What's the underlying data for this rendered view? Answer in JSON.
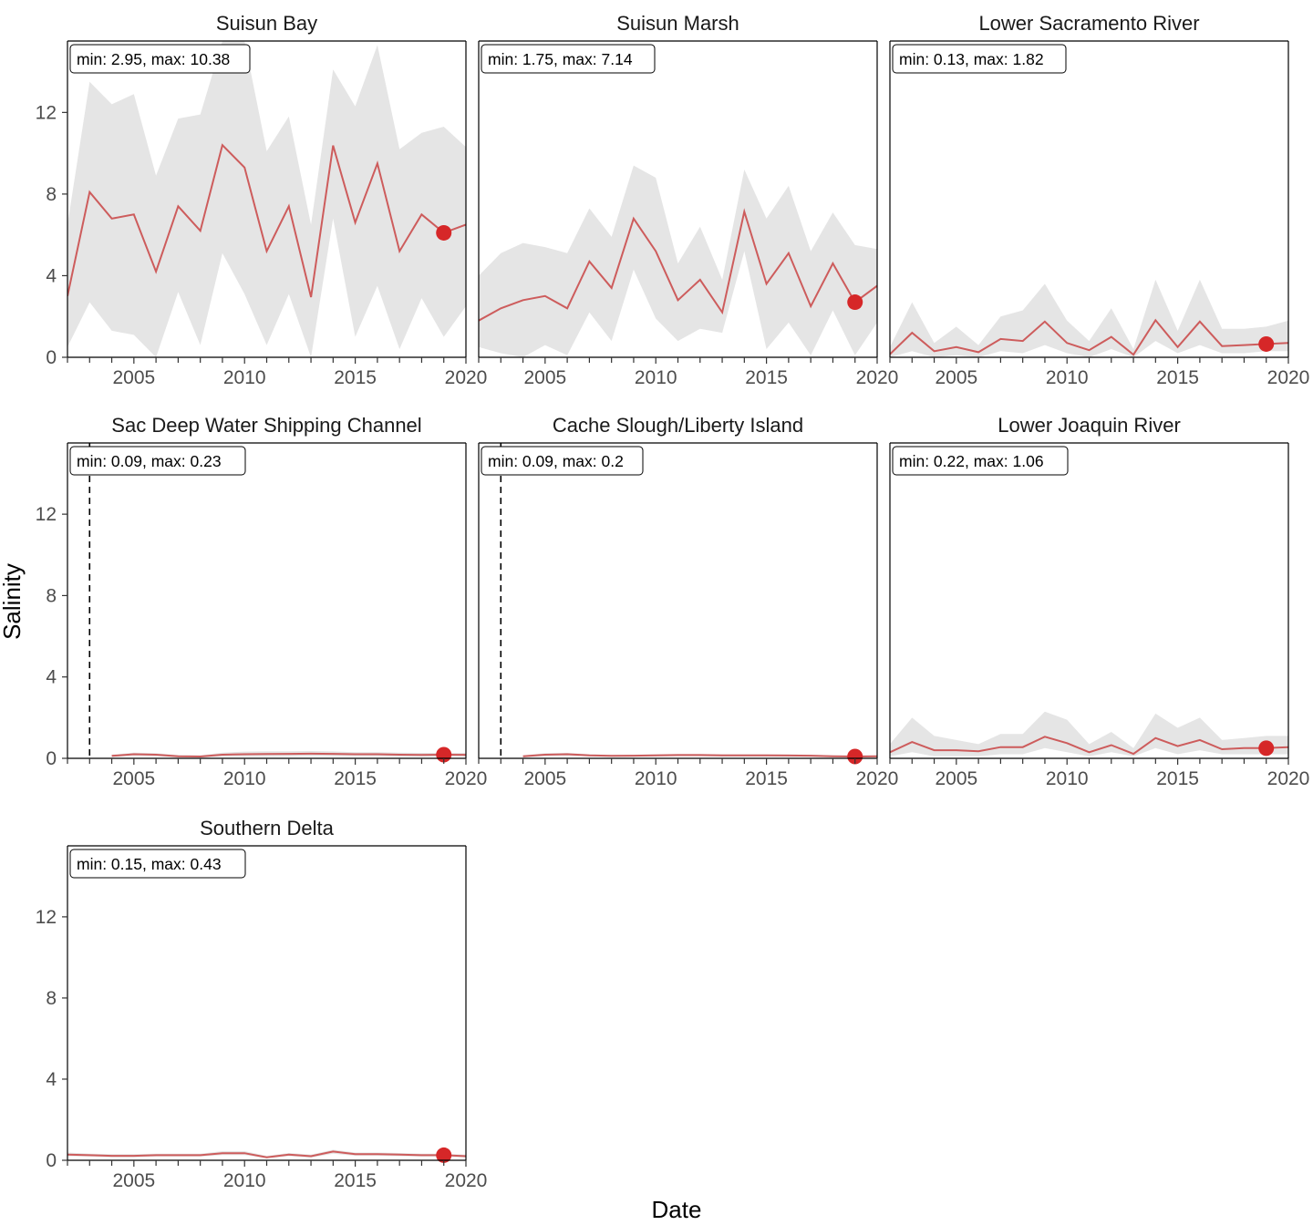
{
  "chart_data": {
    "type": "line",
    "xlabel": "Date",
    "ylabel": "Salinity",
    "xlim": [
      2002,
      2020
    ],
    "ylim": [
      0,
      15.5
    ],
    "xticks": [
      2005,
      2010,
      2015,
      2020
    ],
    "yticks": [
      0,
      4,
      8,
      12
    ],
    "grid": false,
    "colors": {
      "line": "#cd5c5c",
      "point": "#d62728",
      "ribbon": "#e5e5e5",
      "axis": "#000000"
    },
    "panels": [
      {
        "title": "Suisun Bay",
        "annotation": "min: 2.95, max: 10.38",
        "x": [
          2002,
          2003,
          2004,
          2005,
          2006,
          2007,
          2008,
          2009,
          2010,
          2011,
          2012,
          2013,
          2014,
          2015,
          2016,
          2017,
          2018,
          2019,
          2020
        ],
        "y": [
          3.0,
          8.1,
          6.8,
          7.0,
          4.2,
          7.4,
          6.2,
          10.4,
          9.3,
          5.2,
          7.4,
          2.95,
          10.38,
          6.6,
          9.5,
          5.2,
          7.0,
          6.1,
          6.5
        ],
        "upper": [
          6.5,
          13.5,
          12.4,
          12.9,
          8.9,
          11.7,
          11.9,
          15.5,
          15.5,
          10.1,
          11.8,
          6.5,
          14.1,
          12.3,
          15.3,
          10.2,
          11.0,
          11.3,
          10.3
        ],
        "lower": [
          0.5,
          2.7,
          1.3,
          1.1,
          0.0,
          3.2,
          0.6,
          5.1,
          3.1,
          0.6,
          3.1,
          0.0,
          6.8,
          1.0,
          3.5,
          0.4,
          2.9,
          1.0,
          2.5
        ],
        "highlight": {
          "x": 2019,
          "y": 6.1
        },
        "dashed_x": null
      },
      {
        "title": "Suisun Marsh",
        "annotation": "min: 1.75, max: 7.14",
        "x": [
          2002,
          2003,
          2004,
          2005,
          2006,
          2007,
          2008,
          2009,
          2010,
          2011,
          2012,
          2013,
          2014,
          2015,
          2016,
          2017,
          2018,
          2019,
          2020
        ],
        "y": [
          1.8,
          2.4,
          2.8,
          3.0,
          2.4,
          4.7,
          3.4,
          6.8,
          5.2,
          2.8,
          3.8,
          2.2,
          7.14,
          3.6,
          5.1,
          2.5,
          4.6,
          2.7,
          3.5
        ],
        "upper": [
          4.0,
          5.1,
          5.6,
          5.4,
          5.1,
          7.3,
          5.9,
          9.4,
          8.8,
          4.6,
          6.4,
          3.8,
          9.2,
          6.8,
          8.4,
          5.2,
          7.1,
          5.5,
          5.3
        ],
        "lower": [
          0.5,
          0.2,
          0.0,
          0.6,
          0.1,
          2.2,
          0.8,
          4.3,
          1.9,
          0.8,
          1.4,
          1.2,
          5.2,
          0.4,
          1.7,
          0.1,
          2.3,
          0.1,
          1.7
        ],
        "highlight": {
          "x": 2019,
          "y": 2.7
        },
        "dashed_x": null
      },
      {
        "title": "Lower Sacramento River",
        "annotation": "min: 0.13, max: 1.82",
        "x": [
          2002,
          2003,
          2004,
          2005,
          2006,
          2007,
          2008,
          2009,
          2010,
          2011,
          2012,
          2013,
          2014,
          2015,
          2016,
          2017,
          2018,
          2019,
          2020
        ],
        "y": [
          0.15,
          1.2,
          0.3,
          0.5,
          0.25,
          0.9,
          0.8,
          1.75,
          0.7,
          0.35,
          1.0,
          0.13,
          1.82,
          0.5,
          1.75,
          0.55,
          0.6,
          0.65,
          0.7
        ],
        "upper": [
          0.5,
          2.7,
          0.7,
          1.5,
          0.6,
          2.0,
          2.3,
          3.6,
          1.8,
          0.8,
          2.4,
          0.4,
          3.8,
          1.3,
          3.8,
          1.4,
          1.4,
          1.5,
          1.8
        ],
        "lower": [
          0.0,
          0.3,
          0.0,
          0.1,
          0.0,
          0.3,
          0.2,
          0.6,
          0.2,
          0.0,
          0.4,
          0.0,
          0.8,
          0.2,
          0.6,
          0.2,
          0.2,
          0.3,
          0.3
        ],
        "highlight": {
          "x": 2019,
          "y": 0.65
        },
        "dashed_x": null
      },
      {
        "title": "Sac Deep Water Shipping Channel",
        "annotation": "min: 0.09, max: 0.23",
        "x": [
          2004,
          2005,
          2006,
          2007,
          2008,
          2009,
          2010,
          2011,
          2012,
          2013,
          2014,
          2015,
          2016,
          2017,
          2018,
          2019,
          2020
        ],
        "y": [
          0.12,
          0.2,
          0.18,
          0.1,
          0.09,
          0.18,
          0.2,
          0.21,
          0.22,
          0.23,
          0.22,
          0.2,
          0.2,
          0.18,
          0.17,
          0.18,
          0.17
        ],
        "upper": [
          0.18,
          0.28,
          0.25,
          0.16,
          0.15,
          0.28,
          0.33,
          0.35,
          0.35,
          0.36,
          0.34,
          0.3,
          0.3,
          0.28,
          0.27,
          0.27,
          0.26
        ],
        "lower": [
          0.06,
          0.12,
          0.1,
          0.05,
          0.04,
          0.08,
          0.08,
          0.08,
          0.09,
          0.1,
          0.1,
          0.1,
          0.1,
          0.08,
          0.08,
          0.09,
          0.08
        ],
        "highlight": {
          "x": 2019,
          "y": 0.18
        },
        "dashed_x": 2003
      },
      {
        "title": "Cache Slough/Liberty Island",
        "annotation": "min: 0.09, max: 0.2",
        "x": [
          2004,
          2005,
          2006,
          2007,
          2008,
          2009,
          2010,
          2011,
          2012,
          2013,
          2014,
          2015,
          2016,
          2017,
          2018,
          2019,
          2020
        ],
        "y": [
          0.1,
          0.18,
          0.2,
          0.15,
          0.12,
          0.13,
          0.15,
          0.16,
          0.16,
          0.15,
          0.15,
          0.15,
          0.14,
          0.13,
          0.1,
          0.09,
          0.1
        ],
        "upper": [
          0.15,
          0.25,
          0.27,
          0.2,
          0.17,
          0.18,
          0.2,
          0.21,
          0.21,
          0.2,
          0.2,
          0.2,
          0.19,
          0.18,
          0.15,
          0.14,
          0.14
        ],
        "lower": [
          0.05,
          0.1,
          0.12,
          0.09,
          0.07,
          0.08,
          0.09,
          0.1,
          0.1,
          0.09,
          0.09,
          0.09,
          0.08,
          0.08,
          0.06,
          0.05,
          0.05
        ],
        "highlight": {
          "x": 2019,
          "y": 0.09
        },
        "dashed_x": 2003
      },
      {
        "title": "Lower Joaquin River",
        "annotation": "min: 0.22, max: 1.06",
        "x": [
          2002,
          2003,
          2004,
          2005,
          2006,
          2007,
          2008,
          2009,
          2010,
          2011,
          2012,
          2013,
          2014,
          2015,
          2016,
          2017,
          2018,
          2019,
          2020
        ],
        "y": [
          0.3,
          0.8,
          0.4,
          0.4,
          0.35,
          0.55,
          0.55,
          1.06,
          0.75,
          0.3,
          0.65,
          0.22,
          1.0,
          0.6,
          0.9,
          0.45,
          0.5,
          0.5,
          0.55
        ],
        "upper": [
          0.7,
          2.0,
          1.1,
          0.9,
          0.7,
          1.2,
          1.2,
          2.3,
          1.9,
          0.7,
          1.3,
          0.5,
          2.2,
          1.5,
          2.0,
          0.9,
          1.0,
          1.1,
          1.1
        ],
        "lower": [
          0.1,
          0.3,
          0.1,
          0.1,
          0.1,
          0.2,
          0.2,
          0.5,
          0.3,
          0.1,
          0.3,
          0.1,
          0.5,
          0.2,
          0.4,
          0.2,
          0.2,
          0.2,
          0.2
        ],
        "highlight": {
          "x": 2019,
          "y": 0.5
        },
        "dashed_x": null
      },
      {
        "title": "Southern Delta",
        "annotation": "min: 0.15, max: 0.43",
        "x": [
          2002,
          2003,
          2004,
          2005,
          2006,
          2007,
          2008,
          2009,
          2010,
          2011,
          2012,
          2013,
          2014,
          2015,
          2016,
          2017,
          2018,
          2019,
          2020
        ],
        "y": [
          0.28,
          0.25,
          0.22,
          0.22,
          0.25,
          0.25,
          0.25,
          0.35,
          0.35,
          0.15,
          0.28,
          0.2,
          0.43,
          0.3,
          0.3,
          0.28,
          0.25,
          0.25,
          0.2
        ],
        "upper": [
          0.38,
          0.33,
          0.3,
          0.3,
          0.33,
          0.33,
          0.33,
          0.45,
          0.45,
          0.22,
          0.36,
          0.28,
          0.52,
          0.38,
          0.38,
          0.36,
          0.33,
          0.33,
          0.28
        ],
        "lower": [
          0.2,
          0.18,
          0.15,
          0.15,
          0.18,
          0.18,
          0.18,
          0.26,
          0.26,
          0.1,
          0.2,
          0.13,
          0.33,
          0.22,
          0.22,
          0.2,
          0.18,
          0.18,
          0.14
        ],
        "highlight": {
          "x": 2019,
          "y": 0.25
        },
        "dashed_x": null
      }
    ]
  }
}
